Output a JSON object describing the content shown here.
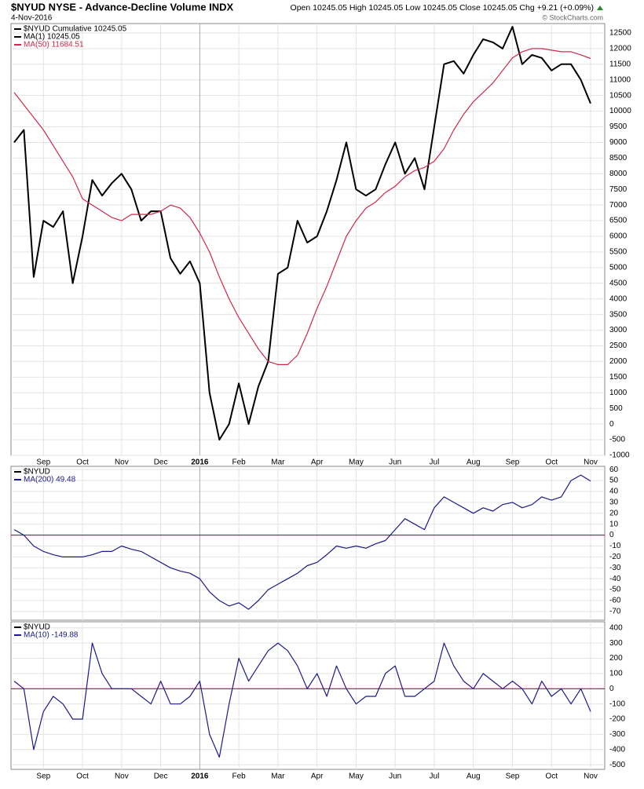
{
  "chart_data": [
    {
      "type": "line",
      "title": "$NYUD NYSE - Advance-Decline Volume INDX",
      "date": "4-Nov-2016",
      "quote": "Open 10245.05  High 10245.05  Low 10245.05  Close 10245.05  Chg +9.21 (+0.09%)",
      "credit": "© StockCharts.com",
      "categories": [
        null,
        null,
        null,
        "Sep",
        null,
        null,
        null,
        "Oct",
        null,
        null,
        null,
        "Nov",
        null,
        null,
        null,
        "Dec",
        null,
        null,
        null,
        "2016",
        null,
        null,
        null,
        "Feb",
        null,
        null,
        null,
        "Mar",
        null,
        null,
        null,
        "Apr",
        null,
        null,
        null,
        "May",
        null,
        null,
        null,
        "Jun",
        null,
        null,
        null,
        "Jul",
        null,
        null,
        null,
        "Aug",
        null,
        null,
        null,
        "Sep",
        null,
        null,
        null,
        "Oct",
        null,
        null,
        null,
        "Nov"
      ],
      "legend_title": "$NYUD Cumulative 10245.05",
      "series": [
        {
          "name": "MA(1) 10245.05",
          "color": "#000000",
          "values": [
            9000,
            9400,
            4700,
            6500,
            6300,
            6800,
            4500,
            6000,
            7800,
            7300,
            7700,
            8000,
            7500,
            6500,
            6800,
            6800,
            5300,
            4800,
            5200,
            4500,
            1000,
            -500,
            0,
            1300,
            0,
            1200,
            2000,
            4800,
            5000,
            6500,
            5800,
            6000,
            6800,
            7800,
            9000,
            7500,
            7300,
            7500,
            8300,
            9000,
            8000,
            8500,
            7500,
            9500,
            11500,
            11600,
            11200,
            11800,
            12300,
            12200,
            12000,
            12700,
            11500,
            11800,
            11700,
            11300,
            11500,
            11500,
            11000,
            10245.05
          ]
        },
        {
          "name": "MA(50) 11684.51",
          "color": "#d0284a",
          "values": [
            10600,
            10200,
            9800,
            9400,
            8900,
            8400,
            7900,
            7200,
            7000,
            6800,
            6600,
            6500,
            6700,
            6700,
            6700,
            6800,
            7000,
            6900,
            6600,
            6100,
            5500,
            4700,
            4000,
            3400,
            2900,
            2400,
            2000,
            1900,
            1900,
            2200,
            2900,
            3700,
            4400,
            5200,
            6000,
            6500,
            6900,
            7100,
            7400,
            7600,
            7900,
            8100,
            8200,
            8400,
            8800,
            9400,
            9900,
            10300,
            10600,
            10900,
            11300,
            11700,
            11900,
            12000,
            12000,
            11950,
            11900,
            11900,
            11800,
            11684.51
          ]
        }
      ],
      "ylim": [
        -1000,
        12800
      ],
      "yticks": [
        -1000,
        -500,
        0,
        500,
        1000,
        1500,
        2000,
        2500,
        3000,
        3500,
        4000,
        4500,
        5000,
        5500,
        6000,
        6500,
        7000,
        7500,
        8000,
        8500,
        9000,
        9500,
        10000,
        10500,
        11000,
        11500,
        12000,
        12500
      ],
      "grid": true
    },
    {
      "type": "line",
      "legend_title": "$NYUD",
      "series": [
        {
          "name": "MA(200) 49.48",
          "color": "#1a1a8c",
          "values": [
            5,
            0,
            -10,
            -15,
            -18,
            -20,
            -20,
            -20,
            -18,
            -15,
            -15,
            -10,
            -13,
            -15,
            -20,
            -25,
            -30,
            -33,
            -35,
            -40,
            -52,
            -60,
            -65,
            -62,
            -68,
            -60,
            -50,
            -45,
            -40,
            -35,
            -28,
            -25,
            -18,
            -10,
            -12,
            -10,
            -12,
            -8,
            -5,
            5,
            15,
            10,
            5,
            25,
            35,
            30,
            25,
            20,
            25,
            22,
            28,
            30,
            25,
            28,
            35,
            32,
            35,
            50,
            55,
            49.48
          ]
        }
      ],
      "reference_line": 0,
      "reference_color": "#800040",
      "ylim": [
        -78,
        63
      ],
      "yticks": [
        -70,
        -60,
        -50,
        -40,
        -30,
        -20,
        -10,
        0,
        10,
        20,
        30,
        40,
        50,
        60
      ],
      "grid": true
    },
    {
      "type": "line",
      "legend_title": "$NYUD",
      "categories": [
        null,
        null,
        null,
        "Sep",
        null,
        null,
        null,
        "Oct",
        null,
        null,
        null,
        "Nov",
        null,
        null,
        null,
        "Dec",
        null,
        null,
        null,
        "2016",
        null,
        null,
        null,
        "Feb",
        null,
        null,
        null,
        "Mar",
        null,
        null,
        null,
        "Apr",
        null,
        null,
        null,
        "May",
        null,
        null,
        null,
        "Jun",
        null,
        null,
        null,
        "Jul",
        null,
        null,
        null,
        "Aug",
        null,
        null,
        null,
        "Sep",
        null,
        null,
        null,
        "Oct",
        null,
        null,
        null,
        "Nov"
      ],
      "series": [
        {
          "name": "MA(10) -149.88",
          "color": "#1a1a8c",
          "values": [
            50,
            0,
            -400,
            -150,
            -50,
            -100,
            -200,
            -200,
            300,
            100,
            0,
            0,
            0,
            -50,
            -100,
            50,
            -100,
            -100,
            -50,
            50,
            -300,
            -450,
            -100,
            200,
            50,
            150,
            250,
            300,
            250,
            150,
            0,
            100,
            -50,
            150,
            0,
            -100,
            -50,
            -50,
            100,
            150,
            -50,
            -50,
            0,
            50,
            300,
            150,
            50,
            0,
            100,
            50,
            0,
            50,
            0,
            -100,
            50,
            -50,
            0,
            -100,
            0,
            -149.88
          ]
        }
      ],
      "reference_line": 0,
      "reference_color": "#800040",
      "ylim": [
        -530,
        440
      ],
      "yticks": [
        -500,
        -400,
        -300,
        -200,
        -100,
        0,
        100,
        200,
        300,
        400
      ],
      "grid": true
    }
  ]
}
